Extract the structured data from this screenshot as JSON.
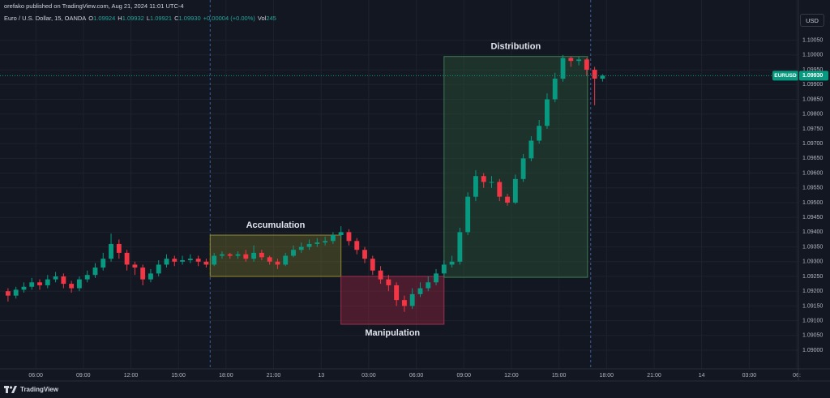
{
  "header": {
    "publisher": "orefako published on TradingView.com, Aug 21, 2024 11:01 UTC-4",
    "symbol": "Euro / U.S. Dollar, 15, OANDA",
    "ohlc": [
      {
        "label": "O",
        "value": "1.09924"
      },
      {
        "label": "H",
        "value": "1.09932"
      },
      {
        "label": "L",
        "value": "1.09921"
      },
      {
        "label": "C",
        "value": "1.09930"
      }
    ],
    "change": "+0.00004 (+0.00%)",
    "volume": {
      "label": "Vol",
      "value": "245"
    }
  },
  "currency": "USD",
  "brand": "TradingView",
  "chart_data": {
    "type": "candlestick",
    "x": [
      4.25,
      4.75,
      5.25,
      5.75,
      6.25,
      6.75,
      7.25,
      7.75,
      8.25,
      8.75,
      9.25,
      9.75,
      10.25,
      10.75,
      11.25,
      11.75,
      12.25,
      12.75,
      13.25,
      13.75,
      14.25,
      14.75,
      15.25,
      15.75,
      16.25,
      16.75,
      17.25,
      17.75,
      18.25,
      18.75,
      19.25,
      19.75,
      20.25,
      20.75,
      21.25,
      21.75,
      22.25,
      22.75,
      23.25,
      23.75,
      24.25,
      24.75,
      25.25,
      25.75,
      26.25,
      26.75,
      27.25,
      27.75,
      28.25,
      28.75,
      29.25,
      29.75,
      30.25,
      30.75,
      31.25,
      31.75,
      32.25,
      32.75,
      33.25,
      33.75,
      34.25,
      34.75,
      35.25,
      35.75,
      36.25,
      36.75,
      37.25,
      37.75,
      38.25,
      38.75,
      39.25,
      39.75,
      40.25,
      40.75,
      41.25,
      41.75
    ],
    "open": [
      1.092,
      1.09185,
      1.09205,
      1.09215,
      1.0923,
      1.0922,
      1.0924,
      1.0925,
      1.09225,
      1.0921,
      1.0924,
      1.09255,
      1.0928,
      1.0931,
      1.0936,
      1.0933,
      1.0929,
      1.0928,
      1.0924,
      1.0926,
      1.0929,
      1.0931,
      1.093,
      1.09305,
      1.0931,
      1.093,
      1.0929,
      1.0932,
      1.09325,
      1.0932,
      1.09325,
      1.0931,
      1.0933,
      1.09315,
      1.093,
      1.0929,
      1.0932,
      1.0934,
      1.0935,
      1.0936,
      1.09365,
      1.0937,
      1.0939,
      1.094,
      1.0937,
      1.0934,
      1.0931,
      1.0927,
      1.0924,
      1.0922,
      1.0917,
      1.0915,
      1.0919,
      1.0921,
      1.0923,
      1.0926,
      1.0929,
      1.093,
      1.094,
      1.0952,
      1.0959,
      1.0957,
      1.0957,
      1.0952,
      1.095,
      1.0958,
      1.0965,
      1.0971,
      1.0976,
      1.0985,
      1.0992,
      1.0999,
      1.0998,
      1.09985,
      1.0995,
      1.0992
    ],
    "high": [
      1.0921,
      1.09215,
      1.0923,
      1.09245,
      1.0924,
      1.09255,
      1.09265,
      1.0926,
      1.09235,
      1.0925,
      1.0927,
      1.09295,
      1.0933,
      1.09395,
      1.09375,
      1.0934,
      1.093,
      1.0929,
      1.09275,
      1.09305,
      1.09325,
      1.0932,
      1.0932,
      1.09325,
      1.0932,
      1.0931,
      1.0933,
      1.09335,
      1.0933,
      1.09335,
      1.0934,
      1.09355,
      1.0934,
      1.0932,
      1.0931,
      1.0933,
      1.09355,
      1.09365,
      1.09375,
      1.0938,
      1.09385,
      1.094,
      1.0942,
      1.0941,
      1.0938,
      1.0935,
      1.0932,
      1.09285,
      1.09255,
      1.0923,
      1.09185,
      1.0921,
      1.0923,
      1.0925,
      1.09275,
      1.09305,
      1.0932,
      1.09415,
      1.09535,
      1.0961,
      1.096,
      1.0959,
      1.0958,
      1.0953,
      1.09595,
      1.09665,
      1.09725,
      1.0978,
      1.0987,
      1.0994,
      1.1,
      1.09995,
      1.09995,
      1.0999,
      1.0996,
      1.09935
    ],
    "low": [
      1.09165,
      1.09175,
      1.09195,
      1.09205,
      1.09205,
      1.0921,
      1.0923,
      1.0921,
      1.09195,
      1.092,
      1.0923,
      1.09245,
      1.0927,
      1.093,
      1.0931,
      1.0927,
      1.09255,
      1.0922,
      1.0923,
      1.0925,
      1.0928,
      1.09285,
      1.0929,
      1.09295,
      1.09285,
      1.0928,
      1.09285,
      1.0931,
      1.0931,
      1.0931,
      1.093,
      1.093,
      1.09305,
      1.0929,
      1.09275,
      1.09285,
      1.09315,
      1.0933,
      1.0934,
      1.0935,
      1.09355,
      1.0936,
      1.0938,
      1.09355,
      1.09325,
      1.09295,
      1.09255,
      1.09225,
      1.092,
      1.0915,
      1.0913,
      1.0914,
      1.0918,
      1.092,
      1.0922,
      1.0925,
      1.0928,
      1.0929,
      1.0939,
      1.09505,
      1.0955,
      1.0955,
      1.09505,
      1.0949,
      1.09495,
      1.0957,
      1.0964,
      1.097,
      1.0975,
      1.0984,
      1.0991,
      1.0996,
      1.09965,
      1.0993,
      1.0983,
      1.0991
    ],
    "close": [
      1.09185,
      1.09205,
      1.09215,
      1.0923,
      1.0922,
      1.0924,
      1.0925,
      1.09225,
      1.0921,
      1.0924,
      1.09255,
      1.0928,
      1.0931,
      1.0936,
      1.0933,
      1.0929,
      1.0928,
      1.0924,
      1.0926,
      1.0929,
      1.0931,
      1.093,
      1.09305,
      1.0931,
      1.093,
      1.0929,
      1.0932,
      1.09325,
      1.0932,
      1.09325,
      1.0931,
      1.0933,
      1.09315,
      1.093,
      1.0929,
      1.0932,
      1.0934,
      1.0935,
      1.0936,
      1.09365,
      1.0937,
      1.0939,
      1.094,
      1.0937,
      1.0934,
      1.0931,
      1.0927,
      1.0924,
      1.0922,
      1.0917,
      1.0915,
      1.0919,
      1.0921,
      1.0923,
      1.0926,
      1.0929,
      1.093,
      1.094,
      1.0952,
      1.0959,
      1.0957,
      1.0957,
      1.0952,
      1.095,
      1.0958,
      1.0965,
      1.0971,
      1.0976,
      1.0985,
      1.0992,
      1.0999,
      1.0998,
      1.09985,
      1.0995,
      1.0992,
      1.0993
    ],
    "up_color": "#089981",
    "down_color": "#f23645",
    "xlim": [
      4,
      54.1
    ],
    "xticks": [
      {
        "value": 6,
        "label": "06:00"
      },
      {
        "value": 9,
        "label": "09:00"
      },
      {
        "value": 12,
        "label": "12:00"
      },
      {
        "value": 15,
        "label": "15:00"
      },
      {
        "value": 18,
        "label": "18:00"
      },
      {
        "value": 21,
        "label": "21:00"
      },
      {
        "value": 24,
        "label": "13"
      },
      {
        "value": 27,
        "label": "03:00"
      },
      {
        "value": 30,
        "label": "06:00"
      },
      {
        "value": 33,
        "label": "09:00"
      },
      {
        "value": 36,
        "label": "12:00"
      },
      {
        "value": 39,
        "label": "15:00"
      },
      {
        "value": 42,
        "label": "18:00"
      },
      {
        "value": 45,
        "label": "21:00"
      },
      {
        "value": 48,
        "label": "14"
      },
      {
        "value": 51,
        "label": "03:00"
      },
      {
        "value": 54,
        "label": "06:"
      }
    ],
    "ylim": [
      1.08937,
      1.10137
    ],
    "yticks": [
      {
        "value": 1.1005,
        "label": "1.10050"
      },
      {
        "value": 1.1,
        "label": "1.10000"
      },
      {
        "value": 1.0995,
        "label": "1.09950"
      },
      {
        "value": 1.099,
        "label": "1.09900"
      },
      {
        "value": 1.0985,
        "label": "1.09850"
      },
      {
        "value": 1.098,
        "label": "1.09800"
      },
      {
        "value": 1.0975,
        "label": "1.09750"
      },
      {
        "value": 1.097,
        "label": "1.09700"
      },
      {
        "value": 1.0965,
        "label": "1.09650"
      },
      {
        "value": 1.096,
        "label": "1.09600"
      },
      {
        "value": 1.0955,
        "label": "1.09550"
      },
      {
        "value": 1.095,
        "label": "1.09500"
      },
      {
        "value": 1.0945,
        "label": "1.09450"
      },
      {
        "value": 1.094,
        "label": "1.09400"
      },
      {
        "value": 1.0935,
        "label": "1.09350"
      },
      {
        "value": 1.093,
        "label": "1.09300"
      },
      {
        "value": 1.0925,
        "label": "1.09250"
      },
      {
        "value": 1.092,
        "label": "1.09200"
      },
      {
        "value": 1.0915,
        "label": "1.09150"
      },
      {
        "value": 1.091,
        "label": "1.09100"
      },
      {
        "value": 1.0905,
        "label": "1.09050"
      },
      {
        "value": 1.09,
        "label": "1.09000"
      }
    ],
    "grid": true,
    "session_breaks": [
      17,
      41
    ],
    "last_price": {
      "symbol": "EURUSD",
      "value": 1.0993,
      "label": "1.09930",
      "color": "#089981"
    },
    "annotations": [
      {
        "label": "Accumulation",
        "x": [
          17,
          25.25
        ],
        "y": [
          1.0925,
          1.0939
        ],
        "fill": "rgba(128,124,40,0.35)",
        "stroke": "#8f8a2e",
        "label_position": "top"
      },
      {
        "label": "Manipulation",
        "x": [
          25.25,
          31.75
        ],
        "y": [
          1.09088,
          1.0925
        ],
        "fill": "rgba(130,34,56,0.5)",
        "stroke": "#9c3150",
        "label_position": "bottom"
      },
      {
        "label": "Distribution",
        "x": [
          31.75,
          40.8
        ],
        "y": [
          1.09247,
          1.09995
        ],
        "fill": "rgba(40,78,52,0.5)",
        "stroke": "#3d7a52",
        "label_position": "top"
      }
    ]
  }
}
